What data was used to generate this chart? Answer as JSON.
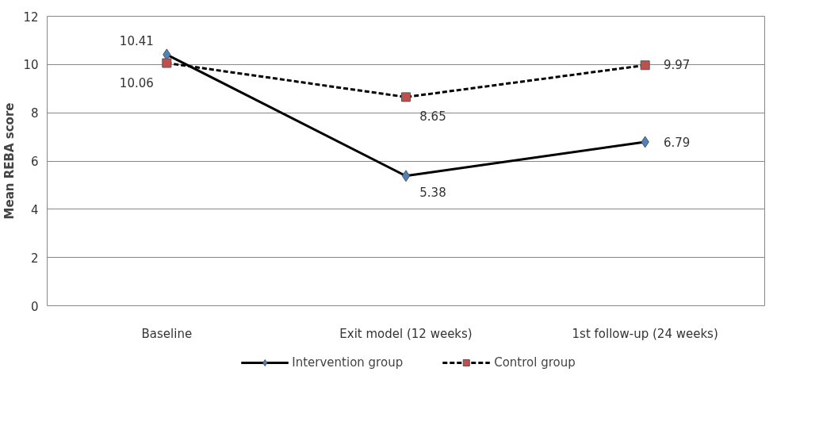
{
  "chart_data": {
    "type": "line",
    "ylabel": "Mean REBA score",
    "categories": [
      "Baseline",
      "Exit model (12 weeks)",
      "1st follow-up (24 weeks)"
    ],
    "series": [
      {
        "name": "Intervention group",
        "color": "#4f81bd",
        "values": [
          10.41,
          5.38,
          6.79
        ],
        "marker": "diamond",
        "line_style": "solid"
      },
      {
        "name": "Control group",
        "color": "#c0504d",
        "values": [
          10.06,
          8.65,
          9.97
        ],
        "marker": "square",
        "line_style": "dashed"
      }
    ],
    "ylim": [
      0,
      12
    ],
    "yticks": [
      0,
      2,
      4,
      6,
      8,
      10,
      12
    ],
    "grid": "y",
    "legend": "bottom",
    "data_labels": true
  }
}
